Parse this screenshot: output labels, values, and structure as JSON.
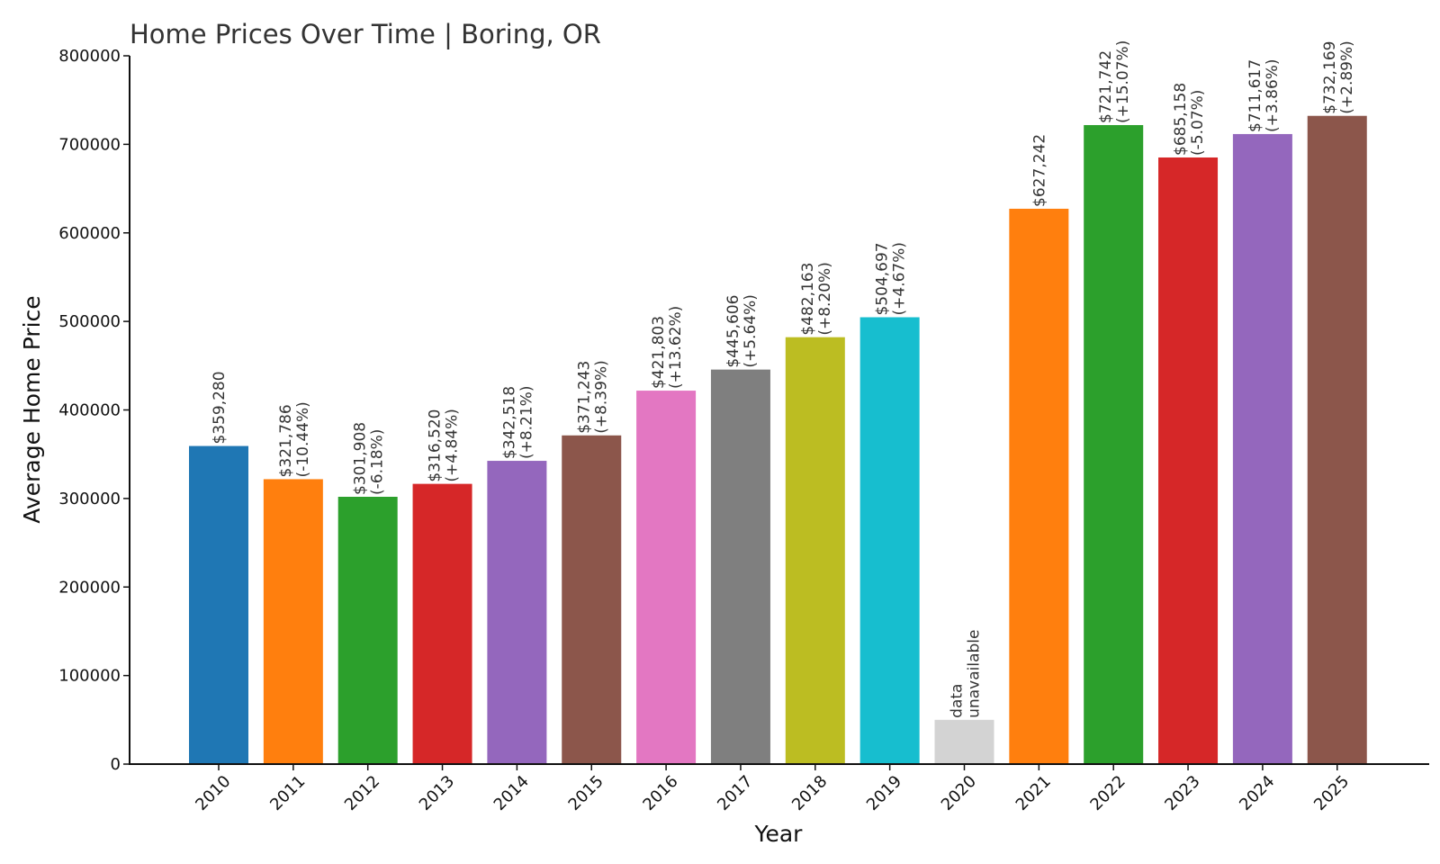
{
  "chart_data": {
    "type": "bar",
    "title": "Home Prices Over Time | Boring, OR",
    "xlabel": "Year",
    "ylabel": "Average Home Price",
    "ylim": [
      0,
      800000
    ],
    "yticks": [
      0,
      100000,
      200000,
      300000,
      400000,
      500000,
      600000,
      700000,
      800000
    ],
    "ytick_labels": [
      "0",
      "100000",
      "200000",
      "300000",
      "400000",
      "500000",
      "600000",
      "700000",
      "800000"
    ],
    "grid": false,
    "legend": "none",
    "categories": [
      "2010",
      "2011",
      "2012",
      "2013",
      "2014",
      "2015",
      "2016",
      "2017",
      "2018",
      "2019",
      "2020",
      "2021",
      "2022",
      "2023",
      "2024",
      "2025"
    ],
    "values": [
      359280,
      321786,
      301908,
      316520,
      342518,
      371243,
      421803,
      445606,
      482163,
      504697,
      50000,
      627242,
      721742,
      685158,
      711617,
      732169
    ],
    "colors": [
      "#1f77b4",
      "#ff7f0e",
      "#2ca02c",
      "#d62728",
      "#9467bd",
      "#8c564b",
      "#e377c2",
      "#7f7f7f",
      "#bcbd22",
      "#17becf",
      "#d3d3d3",
      "#ff7f0e",
      "#2ca02c",
      "#d62728",
      "#9467bd",
      "#8c564b"
    ],
    "value_labels": [
      "$359,280",
      "$321,786",
      "$301,908",
      "$316,520",
      "$342,518",
      "$371,243",
      "$421,803",
      "$445,606",
      "$482,163",
      "$504,697",
      "data",
      "$627,242",
      "$721,742",
      "$685,158",
      "$711,617",
      "$732,169"
    ],
    "change_labels": [
      "",
      "(-10.44%)",
      "(-6.18%)",
      "(+4.84%)",
      "(+8.21%)",
      "(+8.39%)",
      "(+13.62%)",
      "(+5.64%)",
      "(+8.20%)",
      "(+4.67%)",
      "unavailable",
      "",
      "(+15.07%)",
      "(-5.07%)",
      "(+3.86%)",
      "(+2.89%)"
    ]
  }
}
